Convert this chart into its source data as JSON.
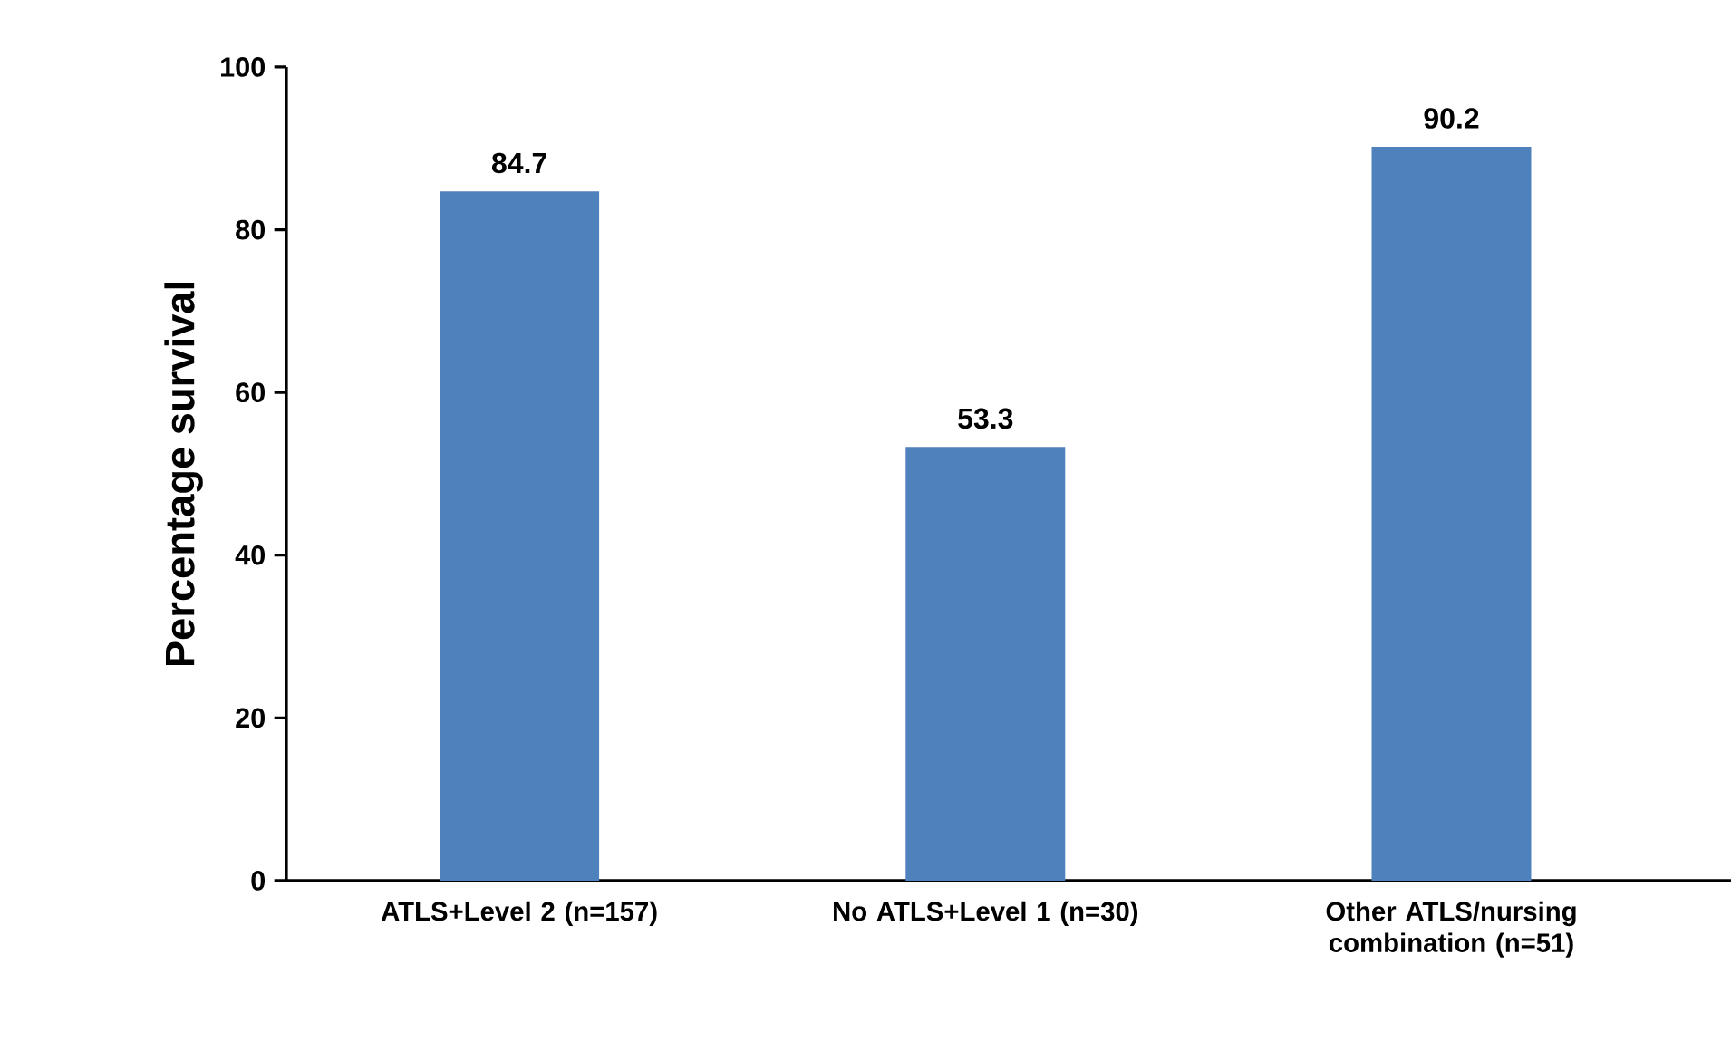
{
  "chart_data": {
    "type": "bar",
    "ylabel": "Percentage survival",
    "categories": [
      "ATLS+Level 2 (n=157)",
      "No ATLS+Level 1 (n=30)",
      "Other ATLS/nursing combination (n=51)"
    ],
    "values": [
      84.7,
      53.3,
      90.2
    ],
    "color": "#4f81bd",
    "ylim": [
      0,
      100
    ],
    "yticks": [
      0,
      20,
      40,
      60,
      80,
      100
    ],
    "data_labels": true
  }
}
